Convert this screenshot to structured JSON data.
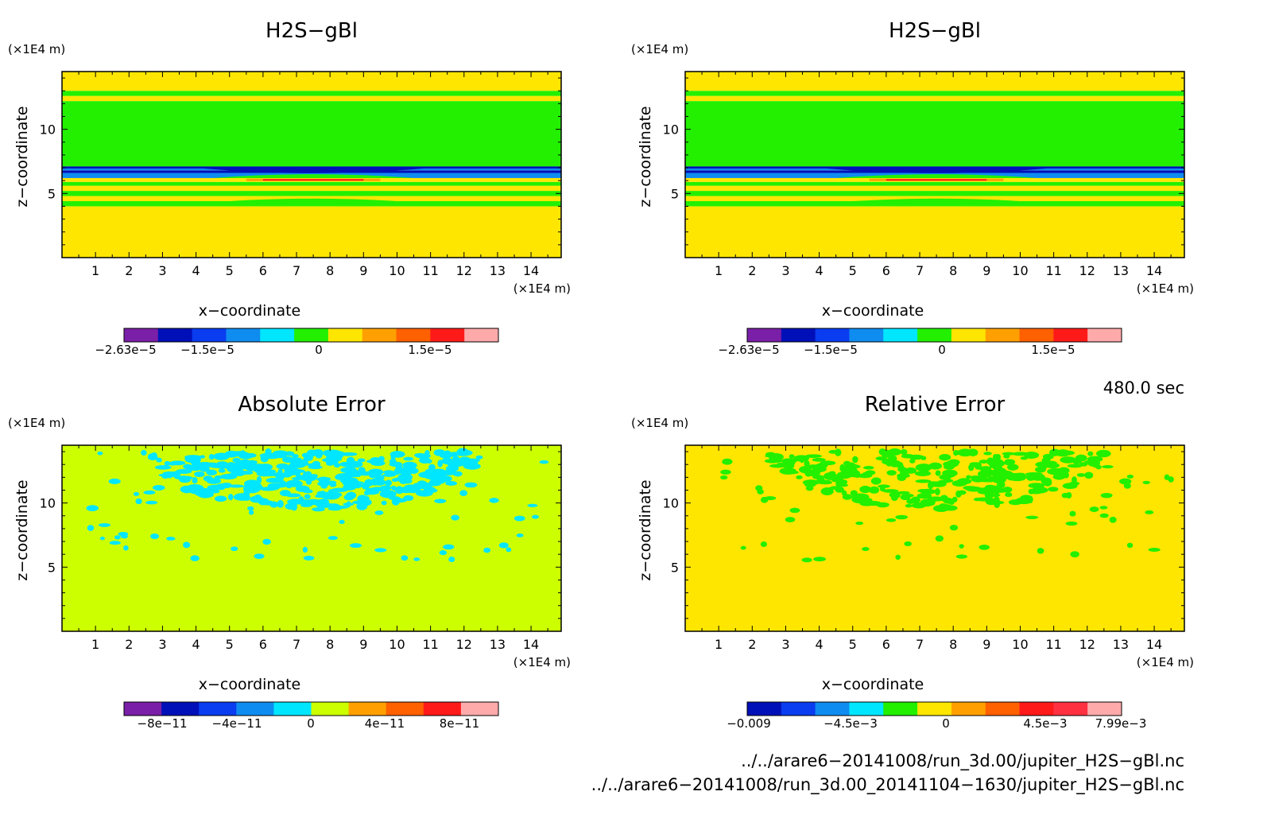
{
  "chart_data": [
    {
      "type": "heatmap",
      "title": "H2S−gBl",
      "xlabel": "x−coordinate",
      "ylabel": "z−coordinate",
      "x_unit": "(×1E4 m)",
      "z_unit": "(×1E4 m)",
      "xlim": [
        0,
        14.9
      ],
      "zlim": [
        0,
        14.5
      ],
      "x_ticks": [
        1,
        2,
        3,
        4,
        5,
        6,
        7,
        8,
        9,
        10,
        11,
        12,
        13,
        14
      ],
      "z_ticks": [
        5,
        10
      ],
      "colorbar": {
        "colors": [
          "#7a1fa8",
          "#0010b8",
          "#0a3cf0",
          "#0f8cf0",
          "#00e6ff",
          "#22f000",
          "#ffe600",
          "#ffa000",
          "#ff6000",
          "#ff1a1a",
          "#ffaaaa"
        ],
        "tick_labels": [
          "−2.63e−5",
          "−1.5e−5",
          "0",
          "1.5e−5"
        ]
      },
      "bands": [
        {
          "z_from": 0,
          "z_to": 4.0,
          "color": "#ffe600"
        },
        {
          "z_from": 4.0,
          "z_to": 4.4,
          "color": "#22f000"
        },
        {
          "z_from": 4.4,
          "z_to": 4.8,
          "color": "#ffe600"
        },
        {
          "z_from": 4.8,
          "z_to": 5.2,
          "color": "#22f000"
        },
        {
          "z_from": 5.2,
          "z_to": 5.6,
          "color": "#ffe600"
        },
        {
          "z_from": 5.6,
          "z_to": 5.9,
          "color": "#22f000"
        },
        {
          "z_from": 5.9,
          "z_to": 6.2,
          "color": "#ffe600"
        },
        {
          "z_from": 6.2,
          "z_to": 6.6,
          "color": "#0f8cf0"
        },
        {
          "z_from": 6.6,
          "z_to": 6.8,
          "color": "#0010b8"
        },
        {
          "z_from": 6.8,
          "z_to": 7.1,
          "color": "#0f8cf0"
        },
        {
          "z_from": 7.1,
          "z_to": 12.2,
          "color": "#22f000"
        },
        {
          "z_from": 12.2,
          "z_to": 12.6,
          "color": "#ffe600"
        },
        {
          "z_from": 12.6,
          "z_to": 13.0,
          "color": "#22f000"
        },
        {
          "z_from": 13.0,
          "z_to": 14.5,
          "color": "#ffe600"
        }
      ]
    },
    {
      "type": "heatmap",
      "title": "H2S−gBl",
      "xlabel": "x−coordinate",
      "ylabel": "z−coordinate",
      "x_unit": "(×1E4 m)",
      "z_unit": "(×1E4 m)",
      "xlim": [
        0,
        14.9
      ],
      "zlim": [
        0,
        14.5
      ],
      "x_ticks": [
        1,
        2,
        3,
        4,
        5,
        6,
        7,
        8,
        9,
        10,
        11,
        12,
        13,
        14
      ],
      "z_ticks": [
        5,
        10
      ],
      "colorbar": {
        "colors": [
          "#7a1fa8",
          "#0010b8",
          "#0a3cf0",
          "#0f8cf0",
          "#00e6ff",
          "#22f000",
          "#ffe600",
          "#ffa000",
          "#ff6000",
          "#ff1a1a",
          "#ffaaaa"
        ],
        "tick_labels": [
          "−2.63e−5",
          "−1.5e−5",
          "0",
          "1.5e−5"
        ]
      },
      "bands": [
        {
          "z_from": 0,
          "z_to": 4.0,
          "color": "#ffe600"
        },
        {
          "z_from": 4.0,
          "z_to": 4.4,
          "color": "#22f000"
        },
        {
          "z_from": 4.4,
          "z_to": 4.8,
          "color": "#ffe600"
        },
        {
          "z_from": 4.8,
          "z_to": 5.2,
          "color": "#22f000"
        },
        {
          "z_from": 5.2,
          "z_to": 5.6,
          "color": "#ffe600"
        },
        {
          "z_from": 5.6,
          "z_to": 5.9,
          "color": "#22f000"
        },
        {
          "z_from": 5.9,
          "z_to": 6.2,
          "color": "#ffe600"
        },
        {
          "z_from": 6.2,
          "z_to": 6.6,
          "color": "#0f8cf0"
        },
        {
          "z_from": 6.6,
          "z_to": 6.8,
          "color": "#0010b8"
        },
        {
          "z_from": 6.8,
          "z_to": 7.1,
          "color": "#0f8cf0"
        },
        {
          "z_from": 7.1,
          "z_to": 12.2,
          "color": "#22f000"
        },
        {
          "z_from": 12.2,
          "z_to": 12.6,
          "color": "#ffe600"
        },
        {
          "z_from": 12.6,
          "z_to": 13.0,
          "color": "#22f000"
        },
        {
          "z_from": 13.0,
          "z_to": 14.5,
          "color": "#ffe600"
        }
      ]
    },
    {
      "type": "heatmap",
      "title": "Absolute Error",
      "xlabel": "x−coordinate",
      "ylabel": "z−coordinate",
      "x_unit": "(×1E4 m)",
      "z_unit": "(×1E4 m)",
      "xlim": [
        0,
        14.9
      ],
      "zlim": [
        0,
        14.5
      ],
      "x_ticks": [
        1,
        2,
        3,
        4,
        5,
        6,
        7,
        8,
        9,
        10,
        11,
        12,
        13,
        14
      ],
      "z_ticks": [
        5,
        10
      ],
      "background_color": "#ccff00",
      "speckle_color": "#00e6ff",
      "speckle_region": {
        "x": [
          2.5,
          12.5
        ],
        "z": [
          9.5,
          14.0
        ]
      },
      "colorbar": {
        "colors": [
          "#7a1fa8",
          "#0010b8",
          "#0a3cf0",
          "#0f8cf0",
          "#00e6ff",
          "#ccff00",
          "#ffa000",
          "#ff6000",
          "#ff1a1a",
          "#ffaaaa"
        ],
        "tick_labels": [
          "−8e−11",
          "−4e−11",
          "0",
          "4e−11",
          "8e−11"
        ]
      }
    },
    {
      "type": "heatmap",
      "title": "Relative Error",
      "xlabel": "x−coordinate",
      "ylabel": "z−coordinate",
      "x_unit": "(×1E4 m)",
      "z_unit": "(×1E4 m)",
      "xlim": [
        0,
        14.9
      ],
      "zlim": [
        0,
        14.5
      ],
      "x_ticks": [
        1,
        2,
        3,
        4,
        5,
        6,
        7,
        8,
        9,
        10,
        11,
        12,
        13,
        14
      ],
      "z_ticks": [
        5,
        10
      ],
      "background_color": "#ffe600",
      "speckle_color": "#22f000",
      "speckle_region": {
        "x": [
          2.5,
          12.5
        ],
        "z": [
          8.5,
          14.0
        ]
      },
      "colorbar": {
        "colors": [
          "#0010b8",
          "#0a3cf0",
          "#0f8cf0",
          "#00e6ff",
          "#22f000",
          "#ffe600",
          "#ffa000",
          "#ff6000",
          "#ff1a1a",
          "#ff3040",
          "#ffaaaa"
        ],
        "tick_labels": [
          "−0.009",
          "−4.5e−3",
          "0",
          "4.5e−3",
          "7.99e−3"
        ]
      }
    }
  ],
  "time_label": "480.0 sec",
  "files": [
    "../../arare6−20141008/run_3d.00/jupiter_H2S−gBl.nc",
    "../../arare6−20141008/run_3d.00_20141104−1630/jupiter_H2S−gBl.nc"
  ]
}
